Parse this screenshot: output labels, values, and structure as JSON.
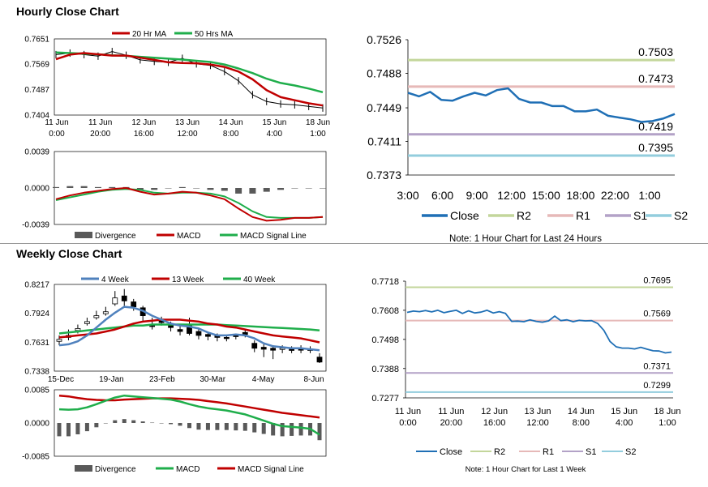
{
  "sections": {
    "hourly_title": "Hourly Close Chart",
    "weekly_title": "Weekly Close Chart"
  },
  "colors": {
    "red": "#c00000",
    "green": "#1fae4b",
    "blue": "#1f6fb5",
    "steel": "#4f81bd",
    "grey": "#595959",
    "r2": "#c3d69b",
    "r1": "#e6b9b8",
    "s1": "#b3a2c7",
    "s2": "#93cddd"
  },
  "chart_data": [
    {
      "id": "hourly-price",
      "type": "line",
      "title": "",
      "yticks": [
        "0.7651",
        "0.7569",
        "0.7487",
        "0.7404"
      ],
      "ylim": [
        0.7404,
        0.7651
      ],
      "xticks": [
        [
          "11 Jun",
          "0:00"
        ],
        [
          "11 Jun",
          "20:00"
        ],
        [
          "12 Jun",
          "16:00"
        ],
        [
          "13 Jun",
          "12:00"
        ],
        [
          "14 Jun",
          "8:00"
        ],
        [
          "15 Jun",
          "4:00"
        ],
        [
          "18 Jun",
          "1:00"
        ]
      ],
      "legend": [
        "20 Hr MA",
        "50 Hrs MA"
      ],
      "series": [
        {
          "name": "20 Hr MA",
          "values": [
            0.7585,
            0.76,
            0.7605,
            0.7601,
            0.7597,
            0.7597,
            0.759,
            0.7583,
            0.7575,
            0.7573,
            0.7572,
            0.7568,
            0.756,
            0.7545,
            0.752,
            0.7485,
            0.7462,
            0.7452,
            0.7442,
            0.7435
          ]
        },
        {
          "name": "50 Hrs MA",
          "values": [
            0.7607,
            0.7605,
            0.7603,
            0.7601,
            0.7598,
            0.7596,
            0.7593,
            0.759,
            0.7587,
            0.7584,
            0.758,
            0.7576,
            0.7568,
            0.7555,
            0.754,
            0.7522,
            0.7508,
            0.75,
            0.749,
            0.7478
          ]
        },
        {
          "name": "Close",
          "values": [
            0.76,
            0.7605,
            0.76,
            0.7595,
            0.761,
            0.7598,
            0.7583,
            0.7578,
            0.7575,
            0.7588,
            0.757,
            0.7565,
            0.7545,
            0.7515,
            0.747,
            0.7448,
            0.744,
            0.7437,
            0.7432,
            0.7427
          ]
        }
      ]
    },
    {
      "id": "hourly-macd",
      "type": "line",
      "yticks": [
        "0.0039",
        "0.0000",
        "-0.0039"
      ],
      "ylim": [
        -0.0039,
        0.0039
      ],
      "legend": [
        "Divergence",
        "MACD",
        "MACD Signal Line"
      ],
      "series": [
        {
          "name": "MACD",
          "values": [
            -0.0012,
            -0.0008,
            -0.0005,
            -0.0003,
            -0.0001,
            0.0,
            -0.0004,
            -0.0007,
            -0.0006,
            -0.0004,
            -0.0005,
            -0.0008,
            -0.0012,
            -0.0022,
            -0.0031,
            -0.0035,
            -0.0034,
            -0.0032,
            -0.0032,
            -0.0031
          ]
        },
        {
          "name": "MACD Signal Line",
          "values": [
            -0.0013,
            -0.001,
            -0.0007,
            -0.0004,
            -0.0002,
            -0.0001,
            -0.0002,
            -0.0005,
            -0.0006,
            -0.0005,
            -0.0005,
            -0.0006,
            -0.0009,
            -0.0016,
            -0.0025,
            -0.0031,
            -0.0032,
            -0.0032,
            -0.0032,
            -0.0031
          ]
        },
        {
          "name": "Divergence",
          "values": [
            0.0001,
            0.0002,
            0.0002,
            0.0001,
            0.0001,
            0.0001,
            -0.0002,
            -0.0002,
            0.0,
            0.0001,
            0.0,
            -0.0002,
            -0.0003,
            -0.0006,
            -0.0006,
            -0.0004,
            -0.0002,
            0.0,
            0.0,
            0.0
          ]
        }
      ]
    },
    {
      "id": "hourly-24h",
      "type": "line",
      "yticks": [
        "0.7526",
        "0.7488",
        "0.7449",
        "0.7411",
        "0.7373"
      ],
      "ylim": [
        0.7373,
        0.7526
      ],
      "xticks": [
        "3:00",
        "6:00",
        "9:00",
        "12:00",
        "15:00",
        "18:00",
        "22:00",
        "1:00"
      ],
      "levels": [
        {
          "name": "R2",
          "value": 0.7503,
          "label": "0.7503"
        },
        {
          "name": "R1",
          "value": 0.7473,
          "label": "0.7473"
        },
        {
          "name": "S1",
          "value": 0.7419,
          "label": "0.7419"
        },
        {
          "name": "S2",
          "value": 0.7395,
          "label": "0.7395"
        }
      ],
      "series": [
        {
          "name": "Close",
          "values": [
            0.7466,
            0.7462,
            0.7467,
            0.7458,
            0.7457,
            0.7462,
            0.7466,
            0.7463,
            0.7469,
            0.7471,
            0.7459,
            0.7455,
            0.7455,
            0.7451,
            0.7451,
            0.7445,
            0.7445,
            0.7447,
            0.744,
            0.7438,
            0.7436,
            0.7433,
            0.7434,
            0.7437,
            0.7442
          ]
        }
      ],
      "legend": [
        "Close",
        "R2",
        "R1",
        "S1",
        "S2"
      ],
      "note": "Note: 1 Hour Chart for Last 24 Hours"
    },
    {
      "id": "weekly-price",
      "type": "line",
      "yticks": [
        "0.8217",
        "0.7924",
        "0.7631",
        "0.7338"
      ],
      "ylim": [
        0.7338,
        0.8217
      ],
      "xticks": [
        "15-Dec",
        "19-Jan",
        "23-Feb",
        "30-Mar",
        "4-May",
        "8-Jun"
      ],
      "legend": [
        "4 Week",
        "13 Week",
        "40 Week"
      ],
      "candles": [
        {
          "o": 0.764,
          "c": 0.766,
          "h": 0.77,
          "l": 0.76
        },
        {
          "o": 0.768,
          "c": 0.77,
          "h": 0.776,
          "l": 0.765
        },
        {
          "o": 0.775,
          "c": 0.777,
          "h": 0.781,
          "l": 0.772
        },
        {
          "o": 0.782,
          "c": 0.784,
          "h": 0.788,
          "l": 0.78
        },
        {
          "o": 0.788,
          "c": 0.79,
          "h": 0.795,
          "l": 0.786
        },
        {
          "o": 0.792,
          "c": 0.794,
          "h": 0.799,
          "l": 0.79
        },
        {
          "o": 0.802,
          "c": 0.808,
          "h": 0.815,
          "l": 0.8
        },
        {
          "o": 0.81,
          "c": 0.805,
          "h": 0.817,
          "l": 0.8
        },
        {
          "o": 0.804,
          "c": 0.799,
          "h": 0.807,
          "l": 0.795
        },
        {
          "o": 0.798,
          "c": 0.79,
          "h": 0.8,
          "l": 0.785
        },
        {
          "o": 0.781,
          "c": 0.779,
          "h": 0.788,
          "l": 0.776
        },
        {
          "o": 0.785,
          "c": 0.783,
          "h": 0.789,
          "l": 0.78
        },
        {
          "o": 0.78,
          "c": 0.778,
          "h": 0.784,
          "l": 0.774
        },
        {
          "o": 0.776,
          "c": 0.774,
          "h": 0.781,
          "l": 0.77
        },
        {
          "o": 0.78,
          "c": 0.772,
          "h": 0.788,
          "l": 0.77
        },
        {
          "o": 0.774,
          "c": 0.77,
          "h": 0.777,
          "l": 0.766
        },
        {
          "o": 0.771,
          "c": 0.769,
          "h": 0.773,
          "l": 0.765
        },
        {
          "o": 0.77,
          "c": 0.768,
          "h": 0.772,
          "l": 0.764
        },
        {
          "o": 0.768,
          "c": 0.767,
          "h": 0.77,
          "l": 0.764
        },
        {
          "o": 0.77,
          "c": 0.769,
          "h": 0.772,
          "l": 0.766
        },
        {
          "o": 0.773,
          "c": 0.771,
          "h": 0.776,
          "l": 0.768
        },
        {
          "o": 0.762,
          "c": 0.757,
          "h": 0.765,
          "l": 0.753
        },
        {
          "o": 0.758,
          "c": 0.756,
          "h": 0.761,
          "l": 0.748
        },
        {
          "o": 0.757,
          "c": 0.755,
          "h": 0.76,
          "l": 0.746
        },
        {
          "o": 0.756,
          "c": 0.757,
          "h": 0.76,
          "l": 0.752
        },
        {
          "o": 0.756,
          "c": 0.755,
          "h": 0.759,
          "l": 0.752
        },
        {
          "o": 0.757,
          "c": 0.755,
          "h": 0.76,
          "l": 0.752
        },
        {
          "o": 0.756,
          "c": 0.755,
          "h": 0.759,
          "l": 0.752
        },
        {
          "o": 0.748,
          "c": 0.743,
          "h": 0.752,
          "l": 0.742
        }
      ],
      "series": [
        {
          "name": "4 Week",
          "values": [
            0.76,
            0.761,
            0.764,
            0.77,
            0.778,
            0.786,
            0.793,
            0.799,
            0.798,
            0.795,
            0.79,
            0.786,
            0.782,
            0.78,
            0.779,
            0.777,
            0.773,
            0.77,
            0.77,
            0.771,
            0.77,
            0.767,
            0.762,
            0.759,
            0.758,
            0.757,
            0.757,
            0.756,
            0.755
          ]
        },
        {
          "name": "13 Week",
          "values": [
            0.768,
            0.769,
            0.77,
            0.771,
            0.772,
            0.774,
            0.776,
            0.779,
            0.782,
            0.784,
            0.785,
            0.786,
            0.786,
            0.786,
            0.785,
            0.784,
            0.782,
            0.781,
            0.779,
            0.778,
            0.776,
            0.774,
            0.772,
            0.77,
            0.769,
            0.768,
            0.767,
            0.765,
            0.763
          ]
        },
        {
          "name": "40 Week",
          "values": [
            0.772,
            0.773,
            0.774,
            0.775,
            0.776,
            0.777,
            0.778,
            0.779,
            0.78,
            0.78,
            0.781,
            0.781,
            0.781,
            0.781,
            0.781,
            0.781,
            0.781,
            0.781,
            0.7805,
            0.78,
            0.7795,
            0.779,
            0.7785,
            0.778,
            0.7775,
            0.777,
            0.7765,
            0.776,
            0.775
          ]
        }
      ]
    },
    {
      "id": "weekly-macd",
      "type": "line",
      "yticks": [
        "0.0085",
        "0.0000",
        "-0.0085"
      ],
      "ylim": [
        -0.0085,
        0.0085
      ],
      "legend": [
        "Divergence",
        "MACD",
        "MACD Signal Line"
      ],
      "series": [
        {
          "name": "MACD Signal Line",
          "values": [
            0.007,
            0.0068,
            0.0064,
            0.0061,
            0.0059,
            0.0058,
            0.0058,
            0.006,
            0.0061,
            0.0062,
            0.0063,
            0.0063,
            0.0063,
            0.0062,
            0.0061,
            0.0059,
            0.0056,
            0.0053,
            0.005,
            0.0046,
            0.0042,
            0.0038,
            0.0034,
            0.003,
            0.0026,
            0.0023,
            0.002,
            0.0017,
            0.0014
          ]
        },
        {
          "name": "MACD",
          "values": [
            0.0035,
            0.0034,
            0.0035,
            0.004,
            0.0048,
            0.0057,
            0.0065,
            0.007,
            0.0068,
            0.0066,
            0.0064,
            0.0062,
            0.006,
            0.0055,
            0.0048,
            0.0042,
            0.0038,
            0.0035,
            0.0032,
            0.0027,
            0.0022,
            0.0014,
            0.0006,
            -0.0002,
            -0.0008,
            -0.001,
            -0.0012,
            -0.0015,
            -0.003
          ]
        },
        {
          "name": "Divergence",
          "values": [
            -0.0034,
            -0.0034,
            -0.0029,
            -0.0021,
            -0.0011,
            -0.0001,
            0.0007,
            0.001,
            0.0007,
            0.0004,
            0.0001,
            -0.0001,
            -0.0003,
            -0.0007,
            -0.0013,
            -0.0017,
            -0.0018,
            -0.0018,
            -0.0018,
            -0.0019,
            -0.002,
            -0.0024,
            -0.0028,
            -0.0032,
            -0.0034,
            -0.0033,
            -0.0032,
            -0.0032,
            -0.0044
          ]
        }
      ]
    },
    {
      "id": "weekly-hourly",
      "type": "line",
      "yticks": [
        "0.7718",
        "0.7608",
        "0.7498",
        "0.7388",
        "0.7277"
      ],
      "ylim": [
        0.7277,
        0.7718
      ],
      "xticks": [
        [
          "11 Jun",
          "0:00"
        ],
        [
          "11 Jun",
          "20:00"
        ],
        [
          "12 Jun",
          "16:00"
        ],
        [
          "13 Jun",
          "12:00"
        ],
        [
          "14 Jun",
          "8:00"
        ],
        [
          "15 Jun",
          "4:00"
        ],
        [
          "18 Jun",
          "1:00"
        ]
      ],
      "levels": [
        {
          "name": "R2",
          "value": 0.7695,
          "label": "0.7695"
        },
        {
          "name": "R1",
          "value": 0.7569,
          "label": "0.7569"
        },
        {
          "name": "S1",
          "value": 0.7371,
          "label": "0.7371"
        },
        {
          "name": "S2",
          "value": 0.7299,
          "label": "0.7299"
        }
      ],
      "series": [
        {
          "name": "Close",
          "values": [
            0.76,
            0.7605,
            0.7603,
            0.7607,
            0.7602,
            0.7608,
            0.7599,
            0.7604,
            0.7608,
            0.7596,
            0.7606,
            0.7598,
            0.7601,
            0.7608,
            0.7598,
            0.7603,
            0.7596,
            0.7566,
            0.7567,
            0.7565,
            0.7572,
            0.7566,
            0.7563,
            0.7568,
            0.7586,
            0.7569,
            0.7572,
            0.7565,
            0.757,
            0.7568,
            0.7569,
            0.7558,
            0.7532,
            0.749,
            0.747,
            0.7465,
            0.7465,
            0.7462,
            0.7468,
            0.7461,
            0.7455,
            0.7454,
            0.7447,
            0.745
          ]
        }
      ],
      "legend": [
        "Close",
        "R2",
        "R1",
        "S1",
        "S2"
      ],
      "note": "Note: 1 Hour Chart for Last 1 Week"
    }
  ]
}
